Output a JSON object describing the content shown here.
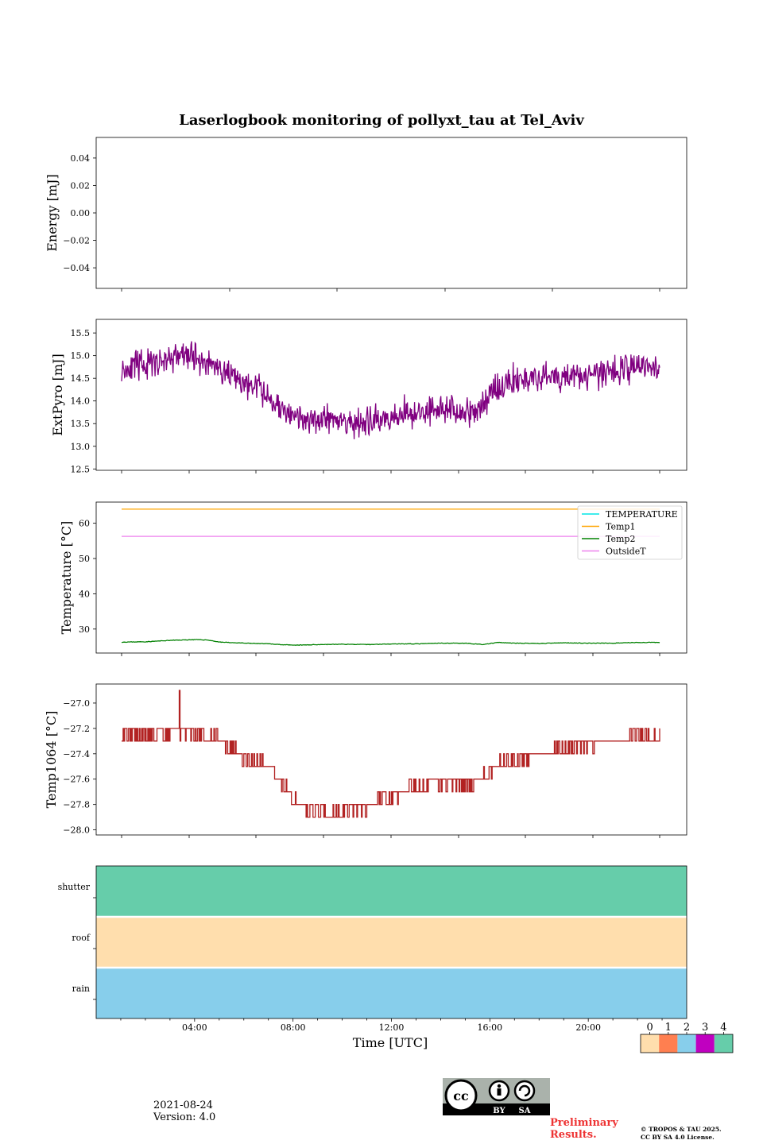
{
  "title": "Laserlogbook monitoring of pollyxt_tau at Tel_Aviv",
  "footer": {
    "date": "2021-08-24",
    "version": "Version: 4.0",
    "preliminary_line1": "Preliminary",
    "preliminary_line2": "Results.",
    "copyright_line1": "© TROPOS & TAU 2025.",
    "copyright_line2": "CC BY SA 4.0 License.",
    "cc_badge": {
      "label_by": "BY",
      "label_sa": "SA",
      "icon": "cc-by-sa-license-icon"
    }
  },
  "chart_data": [
    {
      "type": "line",
      "ylabel": "Energy [mJ]",
      "yticks": [
        0.04,
        0.02,
        0.0,
        -0.02,
        -0.04
      ],
      "ytick_labels": [
        "0.04",
        "0.02",
        "0.00",
        "−0.02",
        "−0.04"
      ],
      "ylim": [
        -0.055,
        0.055
      ],
      "series": []
    },
    {
      "type": "line",
      "ylabel": "ExtPyro [mJ]",
      "yticks": [
        15.5,
        15.0,
        14.5,
        14.0,
        13.5,
        13.0,
        12.5
      ],
      "ytick_labels": [
        "15.5",
        "15.0",
        "14.5",
        "14.0",
        "13.5",
        "13.0",
        "12.5"
      ],
      "ylim": [
        12.47,
        15.8
      ],
      "color": "#800080",
      "x_hours": [
        1.0,
        1.5,
        2.0,
        2.5,
        3.0,
        3.5,
        4.0,
        4.5,
        5.0,
        5.5,
        6.0,
        6.5,
        7.0,
        7.5,
        8.0,
        8.5,
        9.0,
        9.5,
        10.0,
        10.5,
        11.0,
        11.5,
        12.0,
        12.5,
        13.0,
        13.5,
        14.0,
        14.5,
        15.0,
        15.5,
        16.0,
        16.5,
        17.0,
        17.5,
        18.0,
        18.5,
        19.0,
        19.5,
        20.0,
        20.5,
        21.0,
        21.5,
        22.0,
        22.5,
        22.9
      ],
      "values": [
        14.7,
        14.75,
        14.8,
        14.85,
        14.95,
        15.0,
        14.95,
        14.85,
        14.75,
        14.5,
        14.35,
        14.3,
        14.1,
        13.8,
        13.6,
        13.55,
        13.6,
        13.65,
        13.55,
        13.5,
        13.5,
        13.55,
        13.7,
        13.75,
        13.7,
        13.8,
        13.9,
        13.8,
        13.7,
        13.75,
        14.2,
        14.35,
        14.45,
        14.5,
        14.55,
        14.5,
        14.55,
        14.55,
        14.5,
        14.6,
        14.65,
        14.7,
        14.75,
        14.75,
        14.7
      ],
      "noise": 0.28
    },
    {
      "type": "line",
      "ylabel": "Temperature [°C]",
      "yticks": [
        60,
        50,
        40,
        30
      ],
      "ytick_labels": [
        "60",
        "50",
        "40",
        "30"
      ],
      "ylim": [
        23.2,
        66.0
      ],
      "legend": [
        {
          "name": "TEMPERATURE",
          "color": "#00e5e5"
        },
        {
          "name": "Temp1",
          "color": "#ffa500"
        },
        {
          "name": "Temp2",
          "color": "#008000"
        },
        {
          "name": "OutsideT",
          "color": "#ee82ee"
        }
      ],
      "legend_position": "top-right",
      "series": [
        {
          "name": "Temp1",
          "color": "#ffa500",
          "x_hours": [
            1.0,
            22.9
          ],
          "values": [
            64.0,
            64.0
          ]
        },
        {
          "name": "OutsideT",
          "color": "#ee82ee",
          "x_hours": [
            1.0,
            22.9
          ],
          "values": [
            56.3,
            56.3
          ]
        },
        {
          "name": "Temp2",
          "color": "#008000",
          "x_hours": [
            1.0,
            2.0,
            3.0,
            4.0,
            4.5,
            5.0,
            6.0,
            7.0,
            8.0,
            9.0,
            10.0,
            11.0,
            12.0,
            13.0,
            14.0,
            15.0,
            15.7,
            16.3,
            17.0,
            18.0,
            19.0,
            20.0,
            21.0,
            22.0,
            22.9
          ],
          "values": [
            26.3,
            26.4,
            26.8,
            27.0,
            26.9,
            26.3,
            26.0,
            25.8,
            25.4,
            25.6,
            25.7,
            25.6,
            25.8,
            25.8,
            26.0,
            26.0,
            25.6,
            26.2,
            26.0,
            25.9,
            26.1,
            26.0,
            26.0,
            26.2,
            26.2
          ]
        }
      ]
    },
    {
      "type": "line",
      "ylabel": "Temp1064 [°C]",
      "yticks": [
        -27.0,
        -27.2,
        -27.4,
        -27.6,
        -27.8,
        -28.0
      ],
      "ytick_labels": [
        "−27.0",
        "−27.2",
        "−27.4",
        "−27.6",
        "−27.8",
        "−28.0"
      ],
      "ylim": [
        -28.04,
        -26.85
      ],
      "color": "#b22222",
      "x_hours": [
        1.0,
        2.0,
        3.0,
        4.0,
        5.0,
        5.5,
        6.0,
        6.5,
        7.0,
        7.5,
        8.0,
        8.5,
        9.0,
        9.5,
        10.0,
        10.5,
        11.0,
        11.5,
        12.0,
        12.5,
        13.0,
        13.5,
        14.0,
        14.5,
        15.0,
        15.5,
        16.0,
        16.5,
        17.0,
        17.5,
        18.0,
        18.5,
        19.0,
        19.5,
        20.0,
        20.5,
        21.0,
        21.5,
        22.0,
        22.5,
        22.9
      ],
      "values": [
        -27.22,
        -27.25,
        -27.22,
        -27.25,
        -27.28,
        -27.35,
        -27.45,
        -27.45,
        -27.5,
        -27.65,
        -27.75,
        -27.85,
        -27.85,
        -27.88,
        -27.85,
        -27.85,
        -27.8,
        -27.75,
        -27.75,
        -27.7,
        -27.65,
        -27.62,
        -27.62,
        -27.62,
        -27.65,
        -27.6,
        -27.55,
        -27.45,
        -27.45,
        -27.42,
        -27.4,
        -27.4,
        -27.35,
        -27.35,
        -27.33,
        -27.3,
        -27.32,
        -27.3,
        -27.25,
        -27.28,
        -27.28
      ],
      "noise": 0.1,
      "step": 0.1
    },
    {
      "type": "heatmap",
      "rows": [
        "shutter",
        "roof",
        "rain"
      ],
      "row_values": [
        4,
        0,
        2
      ],
      "xlabel": "Time [UTC]",
      "xticks": [
        "04:00",
        "08:00",
        "12:00",
        "16:00",
        "20:00"
      ],
      "xtick_hours": [
        4,
        8,
        12,
        16,
        20
      ],
      "xlim_hours": [
        0,
        24
      ],
      "colorbar": {
        "ticks": [
          "0",
          "1",
          "2",
          "3",
          "4"
        ],
        "colors": [
          "#ffdead",
          "#ff7f50",
          "#87ceeb",
          "#c000c0",
          "#66cdaa"
        ]
      }
    }
  ]
}
